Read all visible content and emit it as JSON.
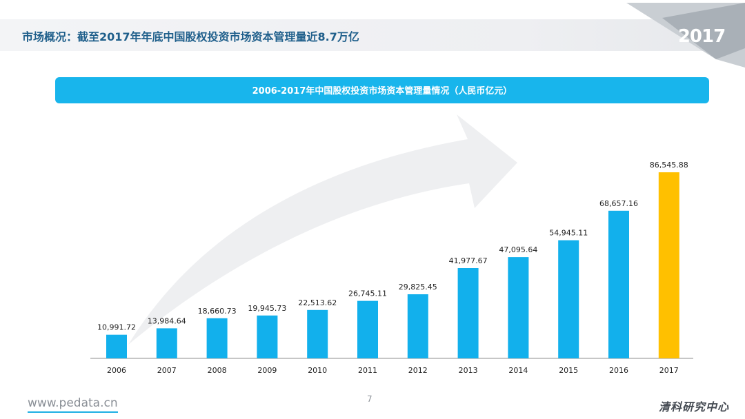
{
  "header": {
    "title": "市场概况：截至2017年年底中国股权投资市场资本管理量近8.7万亿",
    "badge": "2017"
  },
  "colors": {
    "accent": "#18b5ec",
    "bar": "#12b0ec",
    "highlight": "#ffc000",
    "title": "#1f5f8b"
  },
  "chart_data": {
    "type": "bar",
    "title": "2006-2017年中国股权投资市场资本管理量情况（人民币亿元）",
    "categories": [
      "2006",
      "2007",
      "2008",
      "2009",
      "2010",
      "2011",
      "2012",
      "2013",
      "2014",
      "2015",
      "2016",
      "2017"
    ],
    "values": [
      10991.72,
      13984.64,
      18660.73,
      19945.73,
      22513.62,
      26745.11,
      29825.45,
      41977.67,
      47095.64,
      54945.11,
      68657.16,
      86545.88
    ],
    "labels": [
      "10,991.72",
      "13,984.64",
      "18,660.73",
      "19,945.73",
      "22,513.62",
      "26,745.11",
      "29,825.45",
      "41,977.67",
      "47,095.64",
      "54,945.11",
      "68,657.16",
      "86,545.88"
    ],
    "highlight_index": 11,
    "xlabel": "",
    "ylabel": "",
    "ylim": [
      0,
      100000
    ],
    "grid": false,
    "legend": "none"
  },
  "footer": {
    "url": "www.pedata.cn",
    "page": "7",
    "brand": "清科研究中心"
  }
}
